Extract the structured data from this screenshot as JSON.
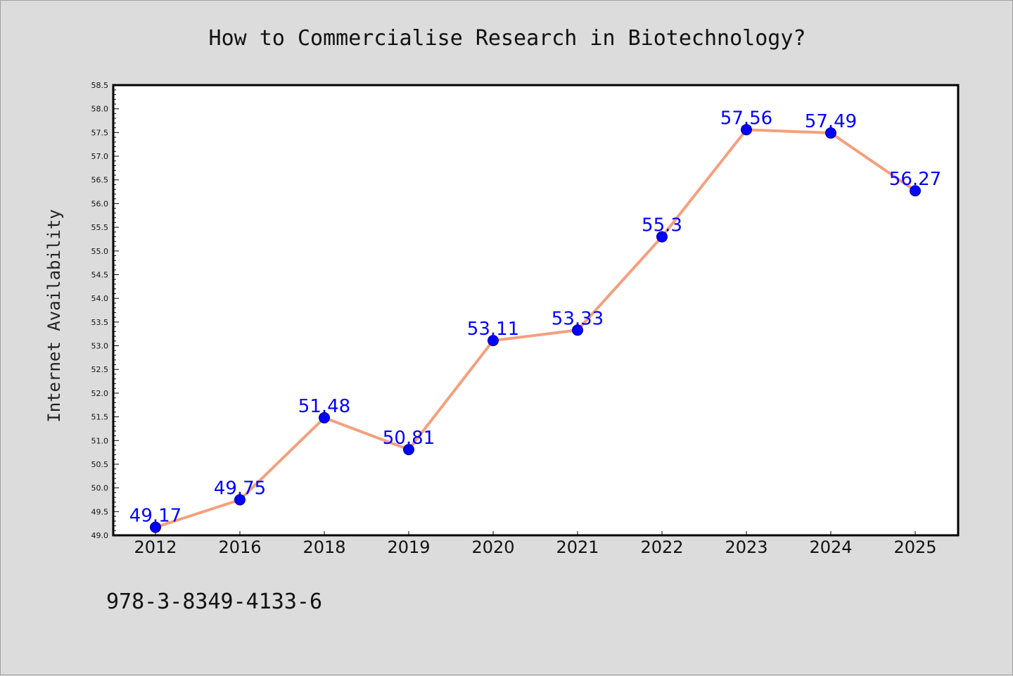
{
  "chart_data": {
    "type": "line",
    "title": "How to Commercialise Research in Biotechnology?",
    "xlabel": "",
    "ylabel": "Internet Availability",
    "categories": [
      "2012",
      "2016",
      "2018",
      "2019",
      "2020",
      "2021",
      "2022",
      "2023",
      "2024",
      "2025"
    ],
    "series": [
      {
        "values": [
          49.17,
          49.75,
          51.48,
          50.81,
          53.11,
          53.33,
          55.3,
          57.56,
          57.49,
          56.27
        ],
        "labels": [
          "49.17",
          "49.75",
          "51.48",
          "50.81",
          "53.11",
          "53.33",
          "55.3",
          "57.56",
          "57.49",
          "56.27"
        ]
      }
    ],
    "ylim": [
      49.0,
      58.5
    ],
    "yticks": [
      "49.0",
      "49.5",
      "50.0",
      "50.5",
      "51.0",
      "51.5",
      "52.0",
      "52.5",
      "53.0",
      "53.5",
      "54.0",
      "54.5",
      "55.0",
      "55.5",
      "56.0",
      "56.5",
      "57.0",
      "57.5",
      "58.0",
      "58.5"
    ],
    "grid": false,
    "colors": {
      "line": "#f4a07e",
      "marker": "#0000ff",
      "data_label": "#0000ff",
      "plot_background": "#ffffff",
      "page_background": "#dcdcdc"
    }
  },
  "footer": {
    "isbn": "978-3-8349-4133-6"
  }
}
